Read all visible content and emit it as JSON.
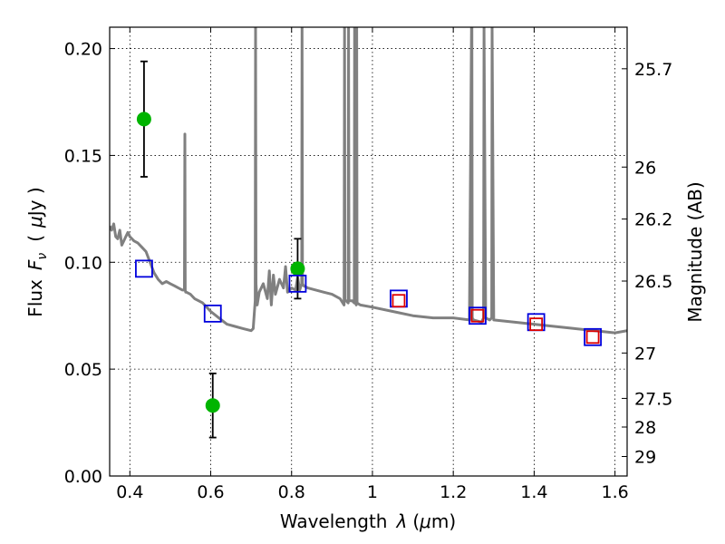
{
  "chart_data": {
    "type": "scatter",
    "xlabel_prefix": "Wavelength",
    "xlabel_symbol": "λ",
    "xlabel_unit_open": "(",
    "xlabel_unit_mu": "μ",
    "xlabel_unit_rest": "m)",
    "ylabel_prefix": "Flux",
    "ylabel_symbol": "F",
    "ylabel_subscript": "ν",
    "ylabel_unit_open": "(",
    "ylabel_unit_mu": "μ",
    "ylabel_unit_rest": "Jy )",
    "y2label": "Magnitude (AB)",
    "xlim": [
      0.35,
      1.63
    ],
    "ylim": [
      0.0,
      0.21
    ],
    "grid": true,
    "x_ticks": [
      {
        "value": 0.4,
        "label": "0.4"
      },
      {
        "value": 0.6,
        "label": "0.6"
      },
      {
        "value": 0.8,
        "label": "0.8"
      },
      {
        "value": 1.0,
        "label": "1"
      },
      {
        "value": 1.2,
        "label": "1.2"
      },
      {
        "value": 1.4,
        "label": "1.4"
      },
      {
        "value": 1.6,
        "label": "1.6"
      }
    ],
    "y_ticks": [
      {
        "value": 0.0,
        "label": "0.00"
      },
      {
        "value": 0.05,
        "label": "0.05"
      },
      {
        "value": 0.1,
        "label": "0.10"
      },
      {
        "value": 0.15,
        "label": "0.15"
      },
      {
        "value": 0.2,
        "label": "0.20"
      }
    ],
    "y2_ticks": [
      {
        "mag": 25.7,
        "label": "25.7"
      },
      {
        "mag": 26,
        "label": "26"
      },
      {
        "mag": 26.2,
        "label": "26.2"
      },
      {
        "mag": 26.5,
        "label": "26.5"
      },
      {
        "mag": 27,
        "label": "27"
      },
      {
        "mag": 27.5,
        "label": "27.5"
      },
      {
        "mag": 28,
        "label": "28"
      },
      {
        "mag": 29,
        "label": "29"
      }
    ],
    "template_spectrum": {
      "color": "#808080",
      "x": [
        0.35,
        0.355,
        0.36,
        0.365,
        0.37,
        0.375,
        0.38,
        0.385,
        0.39,
        0.395,
        0.4,
        0.41,
        0.42,
        0.43,
        0.44,
        0.45,
        0.46,
        0.47,
        0.48,
        0.49,
        0.5,
        0.51,
        0.52,
        0.53,
        0.535,
        0.536,
        0.537,
        0.538,
        0.54,
        0.55,
        0.56,
        0.57,
        0.58,
        0.59,
        0.6,
        0.62,
        0.64,
        0.66,
        0.68,
        0.7,
        0.705,
        0.71,
        0.711,
        0.712,
        0.715,
        0.72,
        0.73,
        0.74,
        0.745,
        0.75,
        0.755,
        0.76,
        0.77,
        0.78,
        0.785,
        0.79,
        0.8,
        0.81,
        0.815,
        0.82,
        0.825,
        0.826,
        0.827,
        0.83,
        0.84,
        0.86,
        0.88,
        0.9,
        0.92,
        0.93,
        0.931,
        0.932,
        0.935,
        0.94,
        0.941,
        0.942,
        0.95,
        0.955,
        0.956,
        0.957,
        0.96,
        0.961,
        0.962,
        0.97,
        1.0,
        1.05,
        1.1,
        1.15,
        1.2,
        1.24,
        1.245,
        1.246,
        1.247,
        1.25,
        1.27,
        1.275,
        1.276,
        1.28,
        1.29,
        1.295,
        1.296,
        1.3,
        1.35,
        1.4,
        1.45,
        1.5,
        1.55,
        1.6,
        1.63
      ],
      "y": [
        0.117,
        0.115,
        0.118,
        0.112,
        0.111,
        0.115,
        0.108,
        0.11,
        0.112,
        0.114,
        0.112,
        0.11,
        0.109,
        0.107,
        0.105,
        0.1,
        0.095,
        0.092,
        0.09,
        0.091,
        0.09,
        0.089,
        0.088,
        0.087,
        0.087,
        0.16,
        0.087,
        0.086,
        0.086,
        0.085,
        0.083,
        0.082,
        0.081,
        0.079,
        0.077,
        0.074,
        0.071,
        0.07,
        0.069,
        0.068,
        0.069,
        0.082,
        0.21,
        0.09,
        0.08,
        0.086,
        0.09,
        0.083,
        0.096,
        0.08,
        0.094,
        0.085,
        0.092,
        0.088,
        0.098,
        0.086,
        0.088,
        0.087,
        0.093,
        0.087,
        0.09,
        0.21,
        0.09,
        0.089,
        0.088,
        0.087,
        0.086,
        0.085,
        0.083,
        0.08,
        0.21,
        0.082,
        0.082,
        0.081,
        0.21,
        0.082,
        0.082,
        0.081,
        0.21,
        0.082,
        0.08,
        0.21,
        0.081,
        0.08,
        0.079,
        0.077,
        0.075,
        0.074,
        0.074,
        0.073,
        0.21,
        0.21,
        0.074,
        0.073,
        0.072,
        0.074,
        0.21,
        0.074,
        0.073,
        0.074,
        0.21,
        0.073,
        0.072,
        0.071,
        0.07,
        0.069,
        0.068,
        0.067,
        0.068
      ]
    },
    "series": [
      {
        "marker": "circle",
        "color": "#00b400",
        "x": [
          0.435,
          0.605,
          0.815
        ],
        "y": [
          0.167,
          0.033,
          0.097
        ],
        "yerr": [
          0.027,
          0.015,
          0.014
        ]
      },
      {
        "marker": "open-square",
        "color": "#0000dd",
        "x": [
          0.435,
          0.605,
          0.815,
          1.065,
          1.26,
          1.405,
          1.545
        ],
        "y": [
          0.097,
          0.076,
          0.09,
          0.083,
          0.075,
          0.072,
          0.065
        ]
      },
      {
        "marker": "open-square",
        "color": "#dd0000",
        "x": [
          1.065,
          1.26,
          1.405,
          1.545
        ],
        "y": [
          0.082,
          0.075,
          0.071,
          0.065
        ]
      }
    ]
  }
}
